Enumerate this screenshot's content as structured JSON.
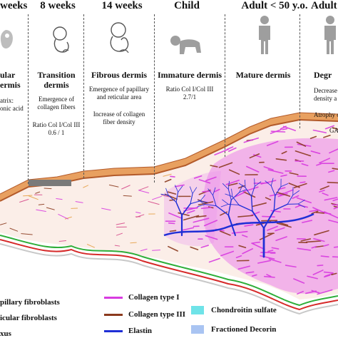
{
  "stages": [
    {
      "id": "s1",
      "head": "weeks",
      "title_lines": [
        "ular",
        "ermis"
      ],
      "texts": [
        "atrix:",
        "onic acid"
      ]
    },
    {
      "id": "s2",
      "head": "8 weeks",
      "title_lines": [
        "Transition",
        "dermis"
      ],
      "texts": [
        "Emergence of",
        "collagen fibers",
        "Ratio Col I/Col III",
        "0.6 / 1"
      ]
    },
    {
      "id": "s3",
      "head": "14 weeks",
      "title_lines": [
        "Fibrous dermis"
      ],
      "texts": [
        "Emergence of papillary",
        "and reticular area",
        "Increase of collagen",
        "fiber density"
      ]
    },
    {
      "id": "s4",
      "head": "Child",
      "title_lines": [
        "Immature dermis"
      ],
      "texts": [
        "Ratio Col I/Col III",
        "2.7/1"
      ]
    },
    {
      "id": "s5",
      "head": "Adult < 50 y.o.",
      "title_lines": [
        "Mature dermis"
      ],
      "texts": []
    },
    {
      "id": "s6",
      "head": "Adult",
      "title_lines": [
        "Degr"
      ],
      "texts": [
        "Decrease",
        "density a",
        "Atrophy o",
        "GA"
      ]
    }
  ],
  "legend": {
    "papillary": "pillary fibroblasts",
    "reticular": "icular fibroblasts",
    "plexus": "xus",
    "collagen1": "Collagen type I",
    "collagen3": "Collagen type III",
    "elastin": "Elastin",
    "chondroitin": "Chondroitin sulfate",
    "decorin": "Fractioned Decorin"
  },
  "colors": {
    "collagen1": "#d83be0",
    "collagen3": "#8b3a1e",
    "elastin": "#1f2fd6",
    "chondroitin": "#6fe3e8",
    "decorin": "#a9c4f2",
    "papillary_line": "#2fae3a",
    "reticular_line": "#d62a2a",
    "plexus_line": "#c8c8c8",
    "epidermis": "#e8a060",
    "epidermis_dark": "#b35a2a"
  },
  "icons": [
    "embryo-icon",
    "fetus-icon",
    "fetus-icon",
    "baby-icon",
    "adult-icon",
    "adult-icon"
  ]
}
